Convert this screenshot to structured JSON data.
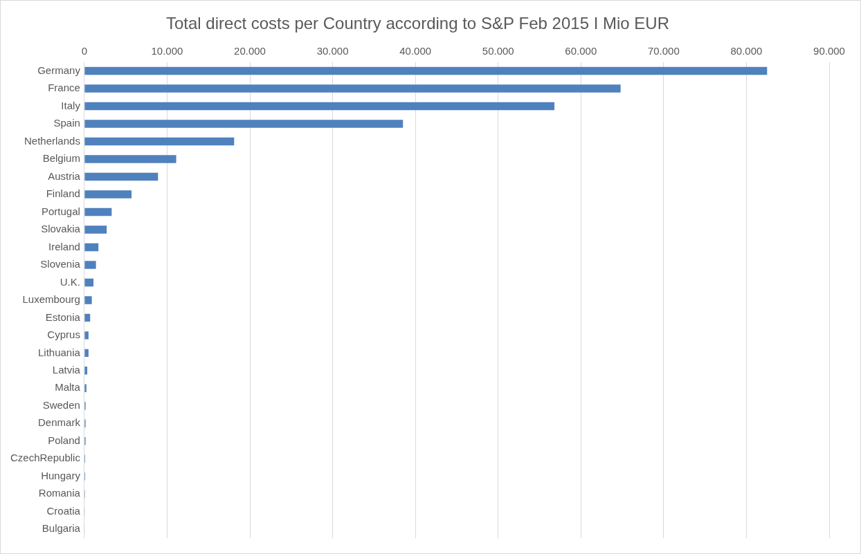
{
  "chart_data": {
    "type": "bar",
    "orientation": "horizontal",
    "title": "Total direct costs per Country according to S&P Feb 2015 I Mio EUR",
    "categories": [
      "Germany",
      "France",
      "Italy",
      "Spain",
      "Netherlands",
      "Belgium",
      "Austria",
      "Finland",
      "Portugal",
      "Slovakia",
      "Ireland",
      "Slovenia",
      "U.K.",
      "Luxembourg",
      "Estonia",
      "Cyprus",
      "Lithuania",
      "Latvia",
      "Malta",
      "Sweden",
      "Denmark",
      "Poland",
      "CzechRepublic",
      "Hungary",
      "Romania",
      "Croatia",
      "Bulgaria"
    ],
    "values": [
      82500,
      64800,
      56800,
      38500,
      18100,
      11100,
      8900,
      5700,
      3300,
      2700,
      1700,
      1400,
      1100,
      900,
      700,
      500,
      500,
      350,
      250,
      150,
      150,
      150,
      100,
      100,
      80,
      60,
      50
    ],
    "color": "#4f81bd",
    "xlim": [
      0,
      90000
    ],
    "xticks": [
      0,
      {
        "value": 10000,
        "label": "10.000"
      },
      {
        "value": 20000,
        "label": "20.000"
      },
      {
        "value": 30000,
        "label": "30.000"
      },
      {
        "value": 40000,
        "label": "40.000"
      },
      {
        "value": 50000,
        "label": "50.000"
      },
      {
        "value": 60000,
        "label": "60.000"
      },
      {
        "value": 70000,
        "label": "70.000"
      },
      {
        "value": 80000,
        "label": "80.000"
      },
      {
        "value": 90000,
        "label": "90.000"
      }
    ],
    "grid": true
  }
}
